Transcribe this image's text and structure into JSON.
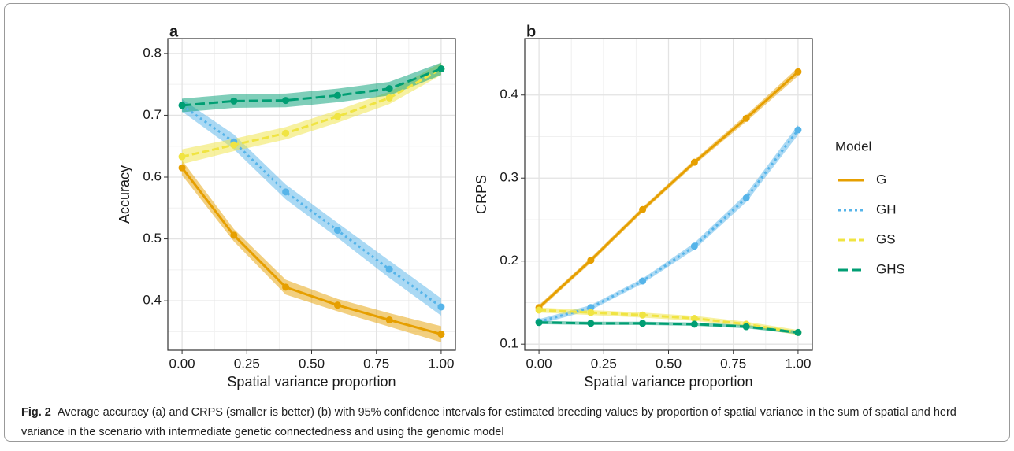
{
  "chart_data": [
    {
      "type": "line",
      "panel_label": "a",
      "x_label": "Spatial variance proportion",
      "y_label": "Accuracy",
      "x": [
        0,
        0.2,
        0.4,
        0.6,
        0.8,
        1.0
      ],
      "xlim": [
        -0.055,
        1.055
      ],
      "ylim": [
        0.32,
        0.824
      ],
      "xticks": [
        {
          "value": 0,
          "label": "0.00"
        },
        {
          "value": 0.25,
          "label": "0.25"
        },
        {
          "value": 0.5,
          "label": "0.50"
        },
        {
          "value": 0.75,
          "label": "0.75"
        },
        {
          "value": 1,
          "label": "1.00"
        }
      ],
      "yticks": [
        0.4,
        0.5,
        0.6,
        0.7,
        0.8
      ],
      "grid": true,
      "series": [
        {
          "name": "G",
          "color": "#E69F00",
          "linestyle": "solid",
          "values": [
            0.615,
            0.506,
            0.422,
            0.393,
            0.369,
            0.346
          ],
          "lower": [
            0.603,
            0.496,
            0.41,
            0.383,
            0.358,
            0.333
          ],
          "upper": [
            0.627,
            0.516,
            0.434,
            0.403,
            0.38,
            0.359
          ]
        },
        {
          "name": "GH",
          "color": "#56B4E9",
          "linestyle": "dotted",
          "values": [
            0.716,
            0.657,
            0.576,
            0.514,
            0.451,
            0.39
          ],
          "lower": [
            0.706,
            0.645,
            0.564,
            0.502,
            0.437,
            0.376
          ],
          "upper": [
            0.726,
            0.669,
            0.588,
            0.526,
            0.465,
            0.404
          ]
        },
        {
          "name": "GS",
          "color": "#F0E442",
          "linestyle": "dashed",
          "values": [
            0.633,
            0.652,
            0.671,
            0.698,
            0.728,
            0.775
          ],
          "lower": [
            0.621,
            0.642,
            0.661,
            0.688,
            0.718,
            0.765
          ],
          "upper": [
            0.645,
            0.662,
            0.681,
            0.708,
            0.738,
            0.785
          ]
        },
        {
          "name": "GHS",
          "color": "#009E73",
          "linestyle": "longdash",
          "values": [
            0.716,
            0.723,
            0.724,
            0.732,
            0.743,
            0.775
          ],
          "lower": [
            0.705,
            0.712,
            0.713,
            0.721,
            0.732,
            0.765
          ],
          "upper": [
            0.727,
            0.734,
            0.735,
            0.743,
            0.754,
            0.785
          ]
        }
      ]
    },
    {
      "type": "line",
      "panel_label": "b",
      "x_label": "Spatial variance proportion",
      "y_label": "CRPS",
      "x": [
        0,
        0.2,
        0.4,
        0.6,
        0.8,
        1.0
      ],
      "xlim": [
        -0.055,
        1.055
      ],
      "ylim": [
        0.0926,
        0.468
      ],
      "xticks": [
        {
          "value": 0,
          "label": "0.00"
        },
        {
          "value": 0.25,
          "label": "0.25"
        },
        {
          "value": 0.5,
          "label": "0.50"
        },
        {
          "value": 0.75,
          "label": "0.75"
        },
        {
          "value": 1,
          "label": "1.00"
        }
      ],
      "yticks": [
        0.1,
        0.2,
        0.3,
        0.4
      ],
      "grid": true,
      "legend_title": "Model",
      "legend": "right",
      "series": [
        {
          "name": "G",
          "color": "#E69F00",
          "linestyle": "solid",
          "values": [
            0.144,
            0.201,
            0.262,
            0.319,
            0.372,
            0.428
          ],
          "lower": [
            0.141,
            0.198,
            0.259,
            0.316,
            0.368,
            0.423
          ],
          "upper": [
            0.147,
            0.204,
            0.265,
            0.322,
            0.376,
            0.433
          ]
        },
        {
          "name": "GH",
          "color": "#56B4E9",
          "linestyle": "dotted",
          "values": [
            0.127,
            0.144,
            0.176,
            0.218,
            0.276,
            0.358
          ],
          "lower": [
            0.124,
            0.141,
            0.173,
            0.214,
            0.271,
            0.352
          ],
          "upper": [
            0.13,
            0.147,
            0.179,
            0.222,
            0.281,
            0.364
          ]
        },
        {
          "name": "GS",
          "color": "#F0E442",
          "linestyle": "dashed",
          "values": [
            0.141,
            0.138,
            0.135,
            0.131,
            0.124,
            0.114
          ],
          "lower": [
            0.138,
            0.135,
            0.132,
            0.128,
            0.121,
            0.111
          ],
          "upper": [
            0.144,
            0.141,
            0.138,
            0.134,
            0.127,
            0.117
          ]
        },
        {
          "name": "GHS",
          "color": "#009E73",
          "linestyle": "longdash",
          "values": [
            0.126,
            0.125,
            0.125,
            0.124,
            0.121,
            0.114
          ],
          "lower": [
            0.124,
            0.123,
            0.123,
            0.122,
            0.119,
            0.112
          ],
          "upper": [
            0.128,
            0.127,
            0.127,
            0.126,
            0.123,
            0.116
          ]
        }
      ]
    }
  ],
  "caption": {
    "label": "Fig. 2",
    "text": "Average accuracy (a) and CRPS (smaller is better) (b) with 95% confidence intervals for estimated breeding values by proportion of spatial variance in the sum of spatial and herd variance in the scenario with intermediate genetic connectedness and using the genomic model"
  }
}
